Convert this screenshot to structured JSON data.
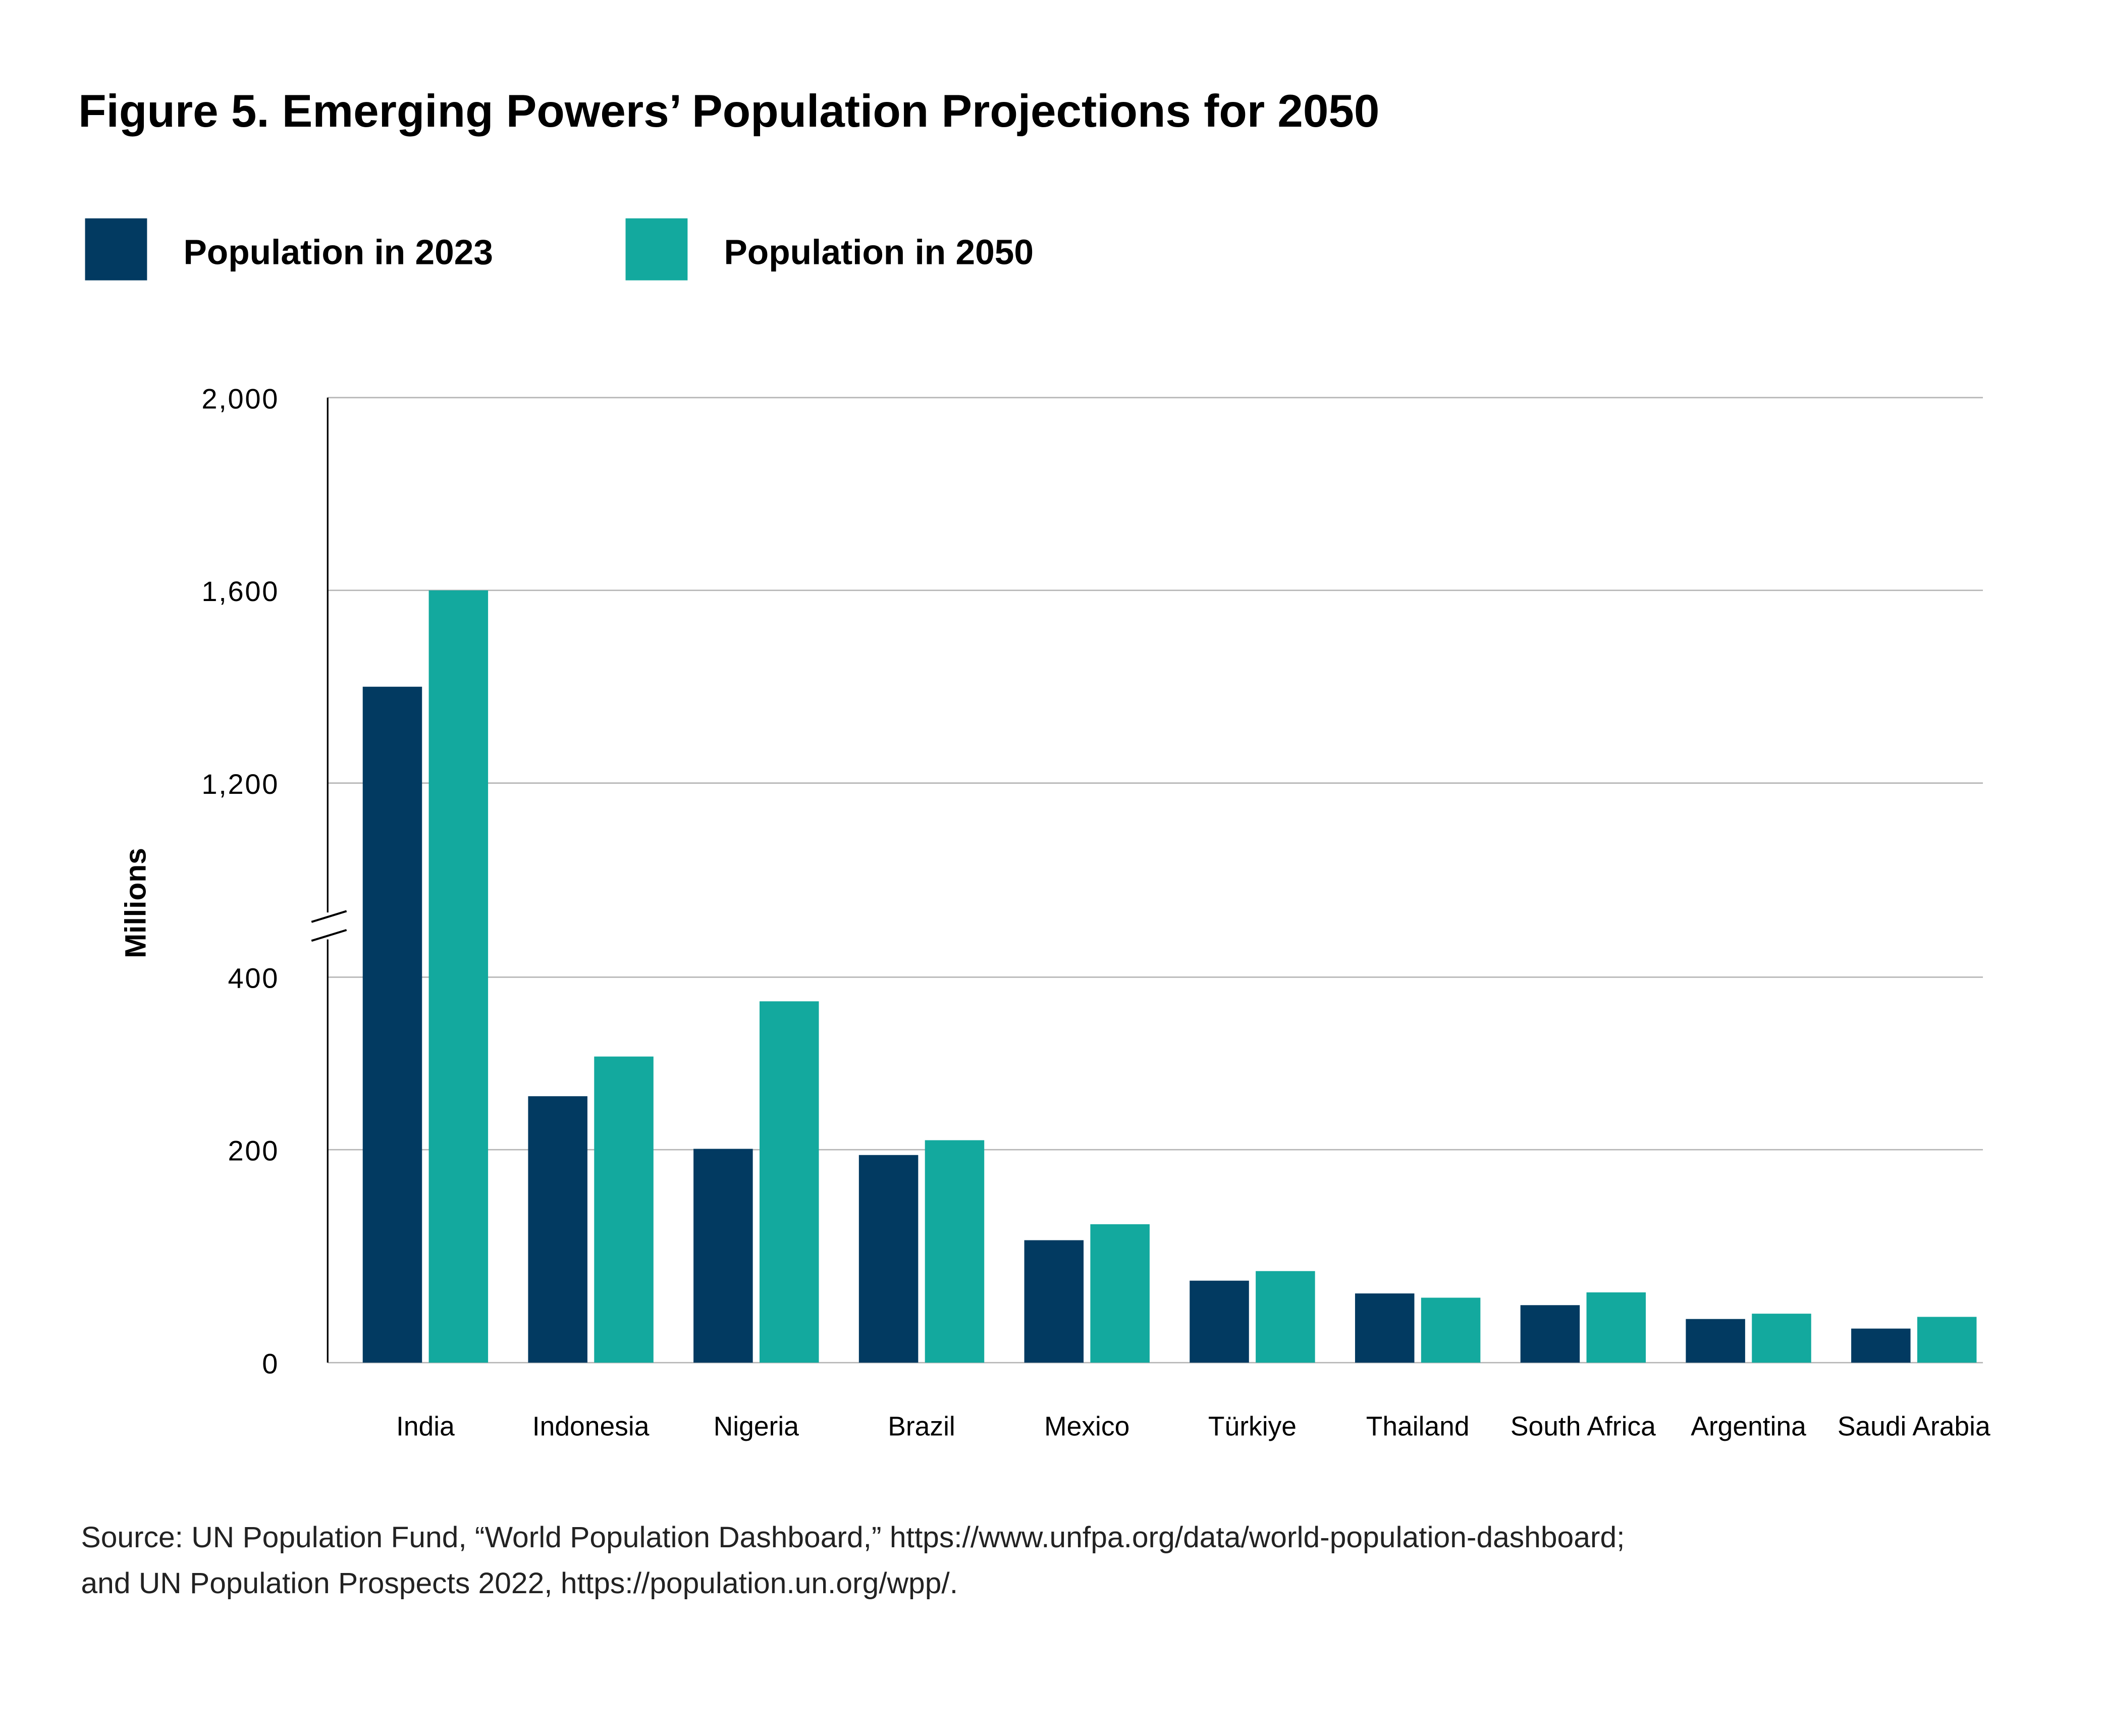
{
  "chart_data": {
    "type": "bar",
    "title": "Figure 5. Emerging Powers’ Population Projections for 2050",
    "ylabel": "Millions",
    "xlabel": "",
    "ylim": [
      0,
      2000
    ],
    "axis_break": [
      400,
      1200
    ],
    "y_ticks": [
      {
        "value": 0,
        "label": "0"
      },
      {
        "value": 200,
        "label": "200"
      },
      {
        "value": 400,
        "label": "400"
      },
      {
        "value": 1200,
        "label": "1,200"
      },
      {
        "value": 1600,
        "label": "1,600"
      },
      {
        "value": 2000,
        "label": "2,000"
      }
    ],
    "grid": true,
    "legend_position": "top-left",
    "categories": [
      "India",
      "Indonesia",
      "Nigeria",
      "Brazil",
      "Mexico",
      "Türkiye",
      "Thailand",
      "South Africa",
      "Argentina",
      "Saudi Arabia"
    ],
    "series": [
      {
        "name": "Population in 2023",
        "color": "#023a61",
        "values": [
          1400,
          262,
          201,
          195,
          115,
          77,
          65,
          54,
          41,
          32
        ]
      },
      {
        "name": "Population in 2050",
        "color": "#13a99e",
        "values": [
          1600,
          308,
          372,
          211,
          130,
          86,
          61,
          66,
          46,
          43
        ]
      }
    ],
    "source_lines": [
      "Source: UN Population Fund, “World Population Dashboard,” https://www.unfpa.org/data/world-population-dashboard;",
      "and UN Population Prospects 2022,  https://population.un.org/wpp/."
    ]
  }
}
